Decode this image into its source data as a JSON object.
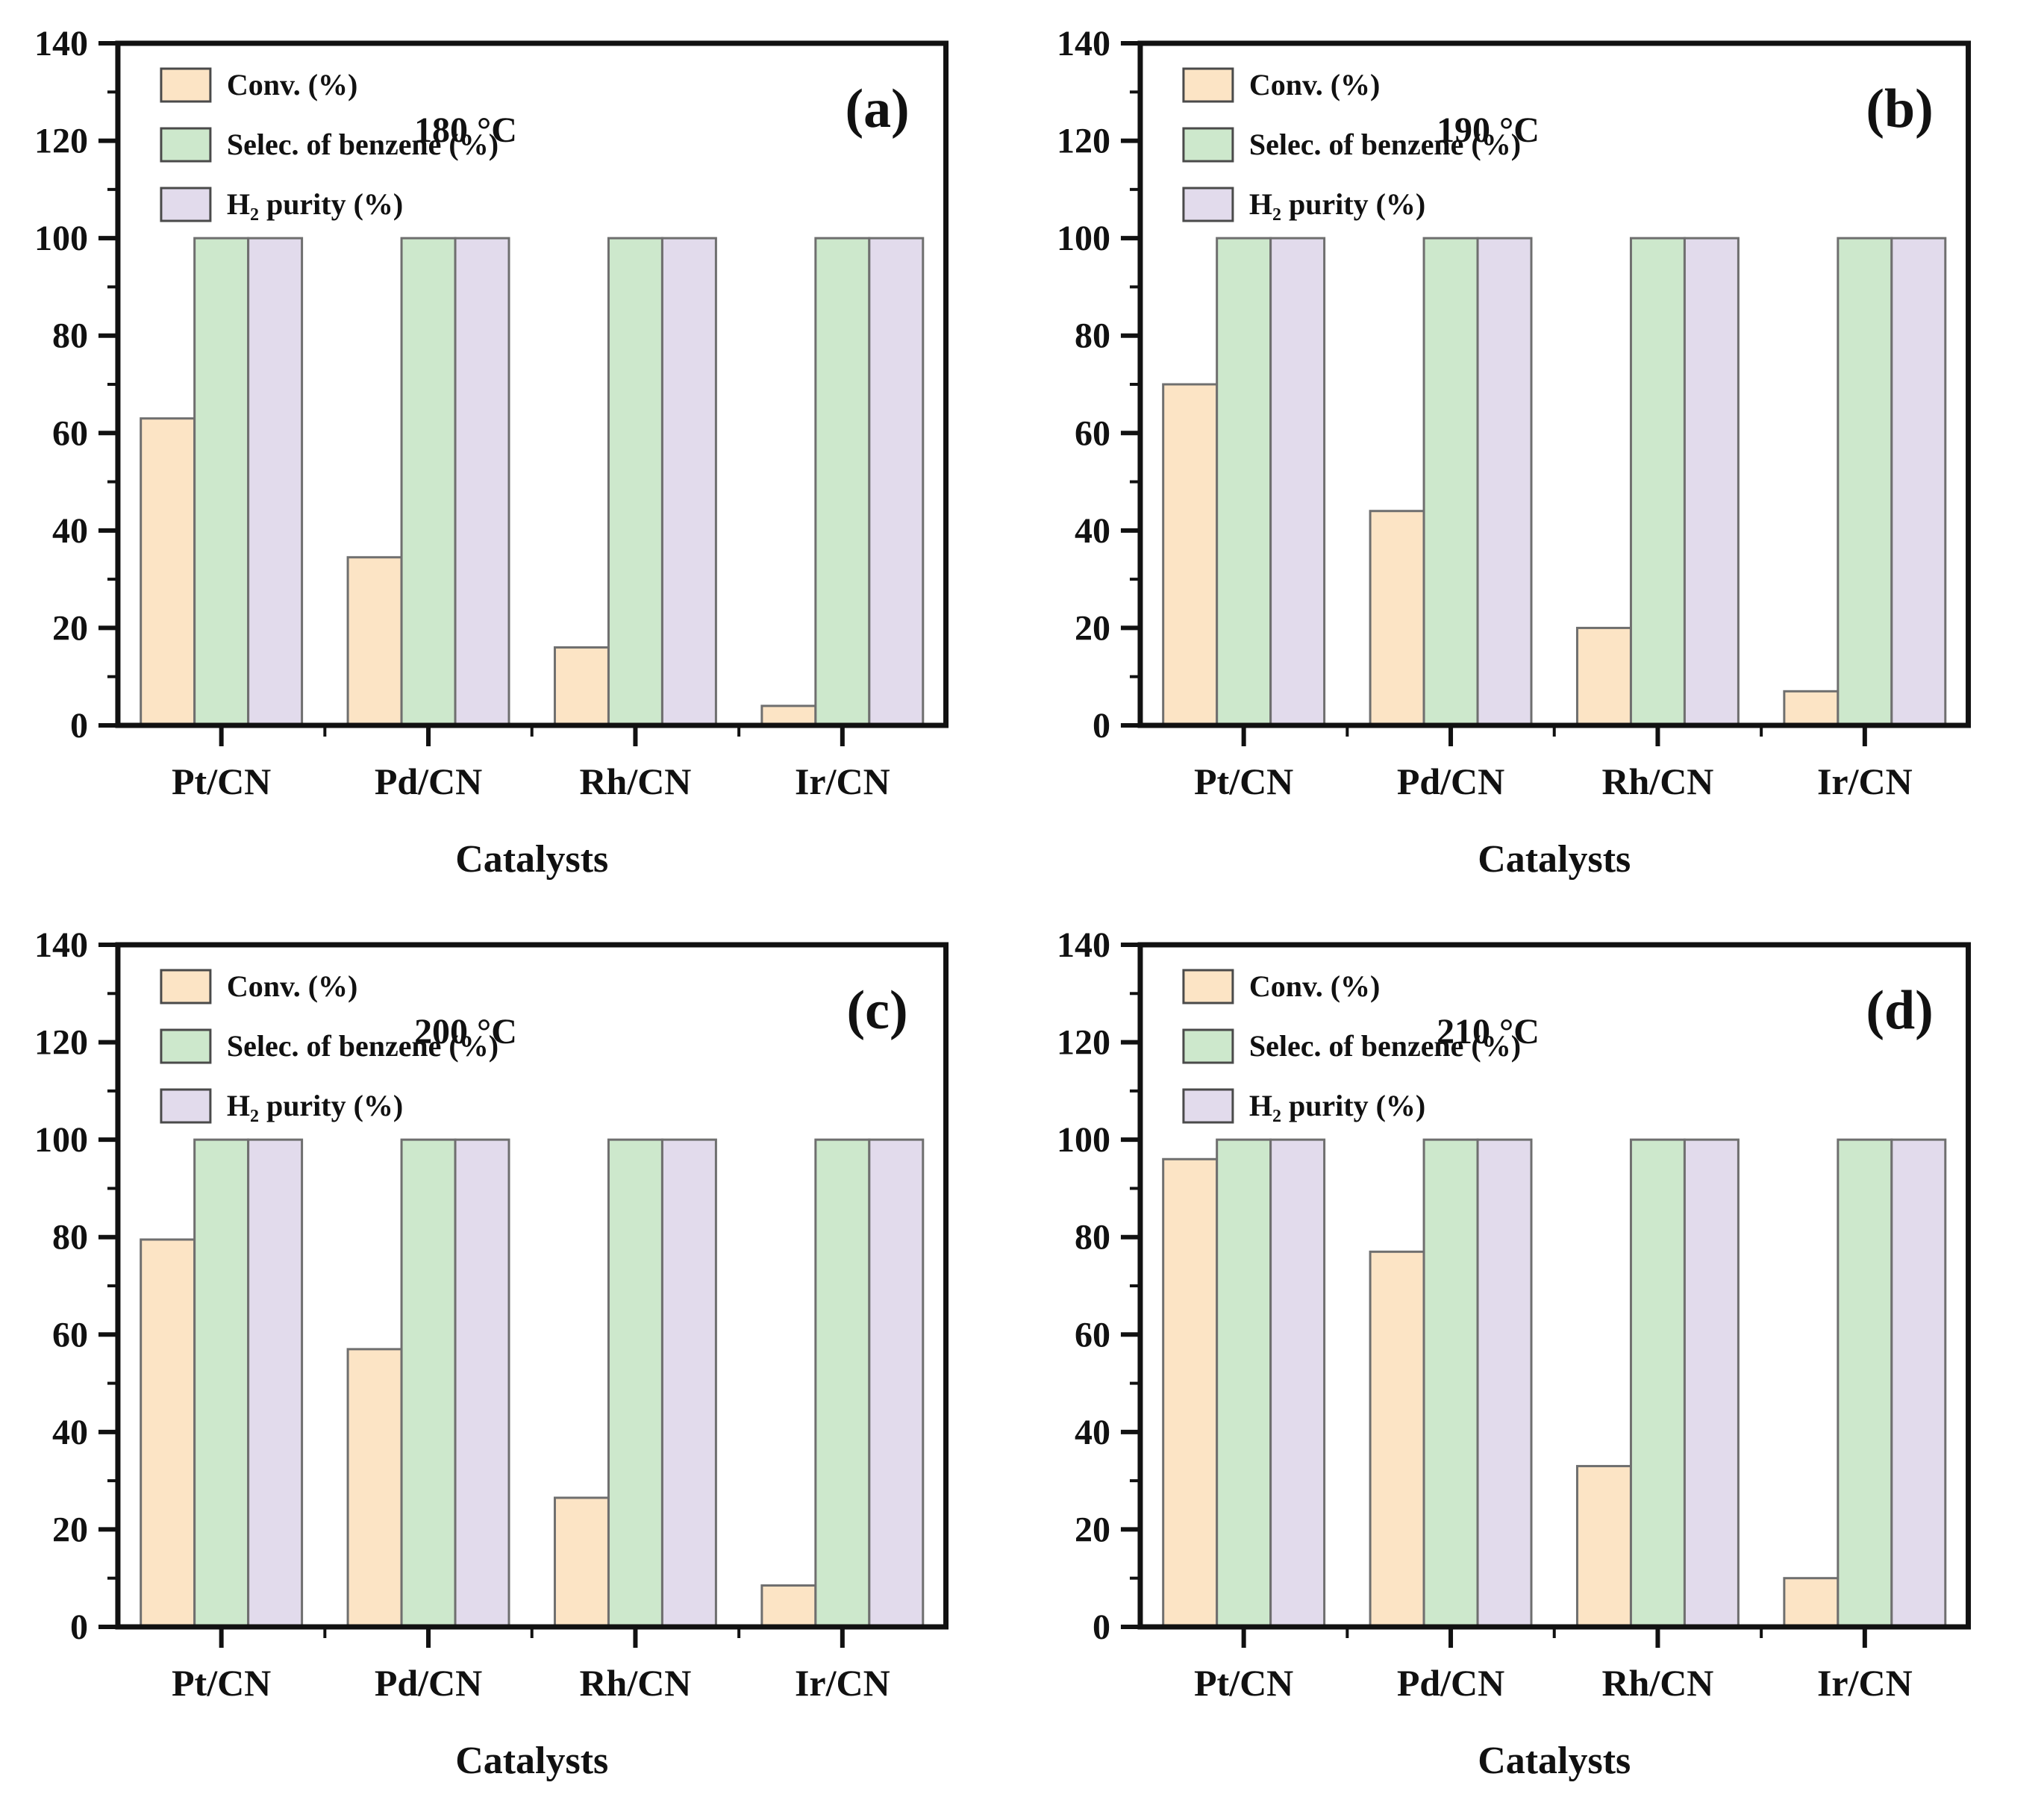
{
  "figure": {
    "description_title": "",
    "xlabel": "Catalysts",
    "legend": [
      "Conv. (%)",
      "Selec. of benzene (%)",
      "H₂ purity (%)"
    ],
    "colors": {
      "conversion": "#FCE4C5",
      "selectivity": "#CDE8CC",
      "h2_purity": "#E2DBEC",
      "bar_edge": "#6f6f6f",
      "axis": "#111111",
      "text": "#111111",
      "background": "#ffffff"
    }
  },
  "chart_data": [
    {
      "type": "bar",
      "panel_label": "(a)",
      "annotation": "180 °C",
      "categories": [
        "Pt/CN",
        "Pd/CN",
        "Rh/CN",
        "Ir/CN"
      ],
      "series": [
        {
          "name": "Conv. (%)",
          "color": "#FCE4C5",
          "values": [
            63,
            34.5,
            16,
            4
          ]
        },
        {
          "name": "Selec. of benzene (%)",
          "color": "#CDE8CC",
          "values": [
            100,
            100,
            100,
            100
          ]
        },
        {
          "name": "H₂ purity (%)",
          "color": "#E2DBEC",
          "values": [
            100,
            100,
            100,
            100
          ]
        }
      ],
      "xlabel": "Catalysts",
      "ylabel": "",
      "ylim": [
        0,
        140
      ],
      "yticks": [
        0,
        20,
        40,
        60,
        80,
        100,
        120,
        140
      ],
      "legend_position": "top-left",
      "grid": false
    },
    {
      "type": "bar",
      "panel_label": "(b)",
      "annotation": "190 °C",
      "categories": [
        "Pt/CN",
        "Pd/CN",
        "Rh/CN",
        "Ir/CN"
      ],
      "series": [
        {
          "name": "Conv. (%)",
          "color": "#FCE4C5",
          "values": [
            70,
            44,
            20,
            7
          ]
        },
        {
          "name": "Selec. of benzene (%)",
          "color": "#CDE8CC",
          "values": [
            100,
            100,
            100,
            100
          ]
        },
        {
          "name": "H₂ purity (%)",
          "color": "#E2DBEC",
          "values": [
            100,
            100,
            100,
            100
          ]
        }
      ],
      "xlabel": "Catalysts",
      "ylabel": "",
      "ylim": [
        0,
        140
      ],
      "yticks": [
        0,
        20,
        40,
        60,
        80,
        100,
        120,
        140
      ],
      "legend_position": "top-left",
      "grid": false
    },
    {
      "type": "bar",
      "panel_label": "(c)",
      "annotation": "200 °C",
      "categories": [
        "Pt/CN",
        "Pd/CN",
        "Rh/CN",
        "Ir/CN"
      ],
      "series": [
        {
          "name": "Conv. (%)",
          "color": "#FCE4C5",
          "values": [
            79.5,
            57,
            26.5,
            8.5
          ]
        },
        {
          "name": "Selec. of benzene (%)",
          "color": "#CDE8CC",
          "values": [
            100,
            100,
            100,
            100
          ]
        },
        {
          "name": "H₂ purity (%)",
          "color": "#E2DBEC",
          "values": [
            100,
            100,
            100,
            100
          ]
        }
      ],
      "xlabel": "Catalysts",
      "ylabel": "",
      "ylim": [
        0,
        140
      ],
      "yticks": [
        0,
        20,
        40,
        60,
        80,
        100,
        120,
        140
      ],
      "legend_position": "top-left",
      "grid": false
    },
    {
      "type": "bar",
      "panel_label": "(d)",
      "annotation": "210 °C",
      "categories": [
        "Pt/CN",
        "Pd/CN",
        "Rh/CN",
        "Ir/CN"
      ],
      "series": [
        {
          "name": "Conv. (%)",
          "color": "#FCE4C5",
          "values": [
            96,
            77,
            33,
            10
          ]
        },
        {
          "name": "Selec. of benzene (%)",
          "color": "#CDE8CC",
          "values": [
            100,
            100,
            100,
            100
          ]
        },
        {
          "name": "H₂ purity (%)",
          "color": "#E2DBEC",
          "values": [
            100,
            100,
            100,
            100
          ]
        }
      ],
      "xlabel": "Catalysts",
      "ylabel": "",
      "ylim": [
        0,
        140
      ],
      "yticks": [
        0,
        20,
        40,
        60,
        80,
        100,
        120,
        140
      ],
      "legend_position": "top-left",
      "grid": false
    }
  ]
}
